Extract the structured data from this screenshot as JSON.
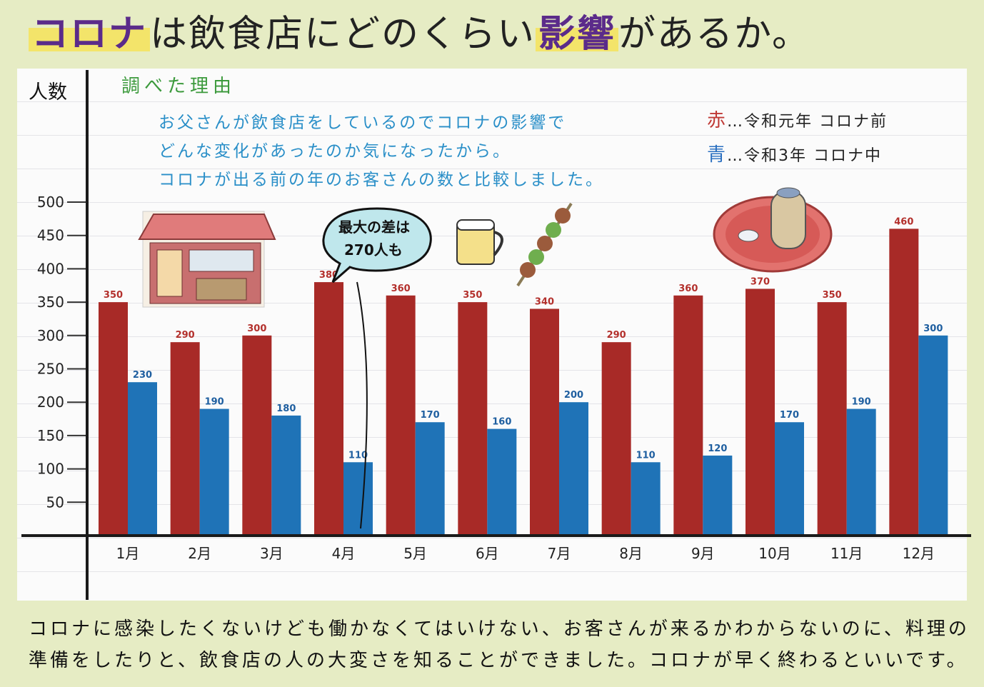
{
  "poster": {
    "title_hl1": "コロナ",
    "title_mid": "は飲食店にどのくらい",
    "title_hl2": "影響",
    "title_end": "があるか。"
  },
  "reason": {
    "title": "調べた理由",
    "lines": [
      "お父さんが飲食店をしているのでコロナの影響で",
      "どんな変化があったのか気になったから。",
      "コロナが出る前の年のお客さんの数と比較しました。"
    ]
  },
  "legend": {
    "red_label": "赤",
    "red_text": "…令和元年 コロナ前",
    "blue_label": "青",
    "blue_text": "…令和3年 コロナ中"
  },
  "callout": {
    "line1": "最大の差は",
    "line2": "270人も"
  },
  "conclusion": {
    "line1": "コロナに感染したくないけども働かなくてはいけない、お客さんが来るかわからないのに、料理の",
    "line2": "準備をしたりと、飲食店の人の大変さを知ることができました。コロナが早く終わるといいです。"
  },
  "colors": {
    "red": "#a82a27",
    "blue": "#1f73b7",
    "axis": "#1a1a1a"
  },
  "chart_data": {
    "type": "bar",
    "ylabel": "人数",
    "categories": [
      "1月",
      "2月",
      "3月",
      "4月",
      "5月",
      "6月",
      "7月",
      "8月",
      "9月",
      "10月",
      "11月",
      "12月"
    ],
    "series": [
      {
        "name": "令和元年 コロナ前",
        "color": "#a82a27",
        "values": [
          350,
          290,
          300,
          380,
          360,
          350,
          340,
          290,
          360,
          370,
          350,
          460
        ]
      },
      {
        "name": "令和3年 コロナ中",
        "color": "#1f73b7",
        "values": [
          230,
          190,
          180,
          110,
          170,
          160,
          200,
          110,
          120,
          170,
          190,
          300
        ]
      }
    ],
    "yticks": [
      50,
      100,
      150,
      200,
      250,
      300,
      350,
      400,
      450,
      500
    ],
    "ylim": [
      0,
      500
    ],
    "legend": "top-right"
  }
}
